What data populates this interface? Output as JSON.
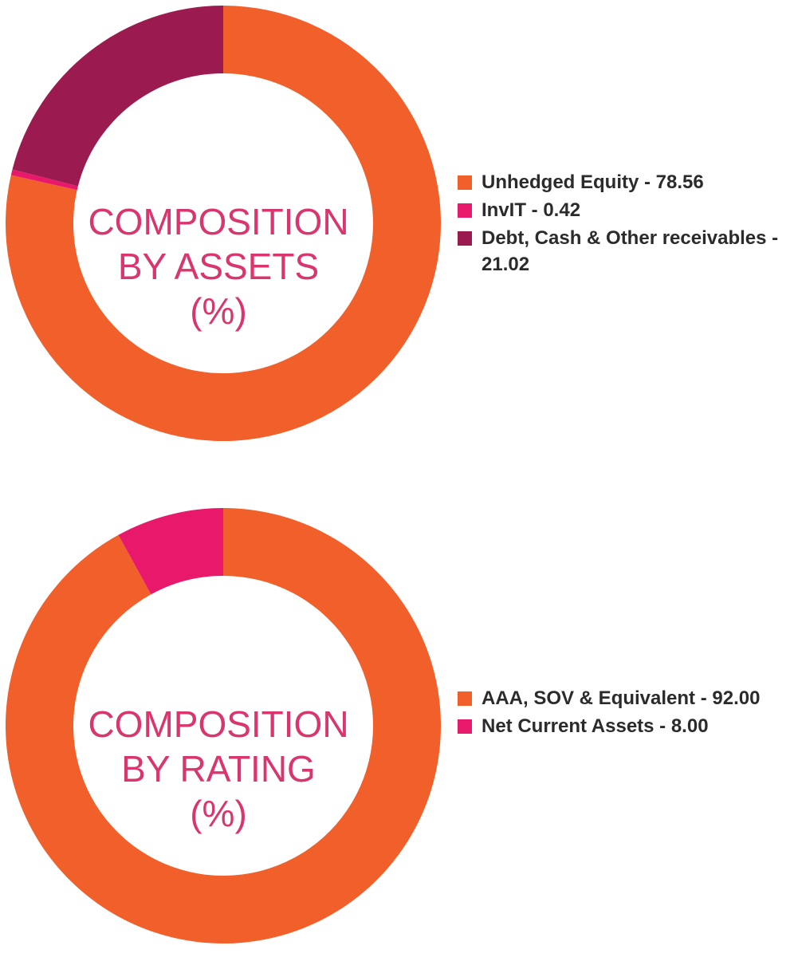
{
  "chart_data": [
    {
      "type": "pie",
      "center_title": [
        "COMPOSITION",
        "BY ASSETS",
        "(%)"
      ],
      "series": [
        {
          "name": "Unhedged Equity - 78.56",
          "value": 78.56,
          "color": "#f15f2b"
        },
        {
          "name": "InvIT - 0.42",
          "value": 0.42,
          "color": "#e8196a"
        },
        {
          "name": "Debt, Cash & Other receivables - 21.02",
          "value": 21.02,
          "color": "#9b1b50"
        }
      ],
      "legend": "right"
    },
    {
      "type": "pie",
      "center_title": [
        "COMPOSITION",
        "BY RATING",
        "(%)"
      ],
      "series": [
        {
          "name": "AAA, SOV & Equivalent - 92.00",
          "value": 92.0,
          "color": "#f15f2b"
        },
        {
          "name": "Net Current Assets - 8.00",
          "value": 8.0,
          "color": "#e8196a"
        }
      ],
      "legend": "right"
    }
  ]
}
